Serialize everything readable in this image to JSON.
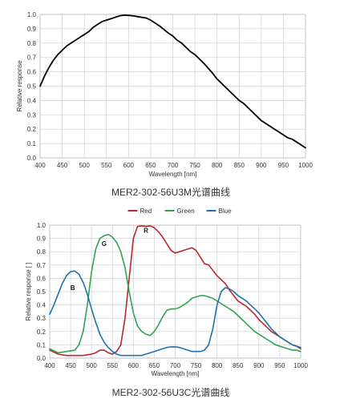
{
  "chart_data": [
    {
      "type": "line",
      "caption": "MER2-302-56U3M光谱曲线",
      "xlabel": "Wavelength  [nm]",
      "ylabel": "Relative response",
      "xlim": [
        400,
        1000
      ],
      "ylim": [
        0,
        1.0
      ],
      "xticks": [
        "400",
        "450",
        "500",
        "550",
        "600",
        "650",
        "700",
        "750",
        "800",
        "850",
        "900",
        "950",
        "1000"
      ],
      "yticks": [
        "0.0",
        "0.1",
        "0.2",
        "0.3",
        "0.4",
        "0.5",
        "0.6",
        "0.7",
        "0.8",
        "0.9",
        "1.0"
      ],
      "grid": true,
      "series": [
        {
          "color": "#000000",
          "x": [
            400,
            410,
            420,
            430,
            440,
            450,
            460,
            470,
            480,
            490,
            500,
            510,
            520,
            530,
            540,
            550,
            560,
            570,
            580,
            590,
            600,
            610,
            620,
            630,
            640,
            650,
            660,
            670,
            680,
            690,
            700,
            710,
            720,
            730,
            740,
            750,
            760,
            770,
            780,
            790,
            800,
            810,
            820,
            830,
            840,
            850,
            860,
            870,
            880,
            890,
            900,
            910,
            920,
            930,
            940,
            950,
            960,
            970,
            980,
            990,
            1000
          ],
          "y": [
            0.5,
            0.57,
            0.63,
            0.68,
            0.72,
            0.75,
            0.78,
            0.8,
            0.82,
            0.84,
            0.86,
            0.88,
            0.91,
            0.93,
            0.95,
            0.96,
            0.97,
            0.98,
            0.99,
            0.995,
            0.993,
            0.99,
            0.985,
            0.98,
            0.975,
            0.96,
            0.94,
            0.92,
            0.895,
            0.87,
            0.85,
            0.82,
            0.8,
            0.77,
            0.74,
            0.72,
            0.69,
            0.66,
            0.625,
            0.59,
            0.55,
            0.52,
            0.49,
            0.46,
            0.43,
            0.4,
            0.38,
            0.35,
            0.32,
            0.29,
            0.26,
            0.24,
            0.22,
            0.2,
            0.18,
            0.16,
            0.14,
            0.13,
            0.11,
            0.09,
            0.07
          ]
        }
      ]
    },
    {
      "type": "line",
      "caption": "MER2-302-56U3C光谱曲线",
      "xlabel": "Wavelength  [nm]",
      "ylabel": "Relative response [ ]",
      "xlim": [
        400,
        1000
      ],
      "ylim": [
        0,
        1.0
      ],
      "xticks": [
        "400",
        "450",
        "500",
        "550",
        "600",
        "650",
        "700",
        "750",
        "800",
        "850",
        "900",
        "950",
        "1000"
      ],
      "yticks": [
        "0.0",
        "0.1",
        "0.2",
        "0.3",
        "0.4",
        "0.5",
        "0.6",
        "0.7",
        "0.8",
        "0.9",
        "1.0"
      ],
      "grid": true,
      "legend_position": "top",
      "annotations": [
        {
          "text": "R",
          "x": 630,
          "y": 0.96
        },
        {
          "text": "G",
          "x": 530,
          "y": 0.86
        },
        {
          "text": "B",
          "x": 455,
          "y": 0.53
        }
      ],
      "series": [
        {
          "name": "Red",
          "color": "#b8282e",
          "x": [
            400,
            420,
            440,
            460,
            480,
            500,
            510,
            520,
            530,
            540,
            550,
            560,
            570,
            580,
            590,
            600,
            610,
            620,
            630,
            640,
            650,
            660,
            670,
            680,
            690,
            700,
            710,
            720,
            730,
            740,
            750,
            760,
            770,
            780,
            790,
            800,
            810,
            820,
            830,
            840,
            850,
            860,
            870,
            880,
            890,
            900,
            910,
            920,
            930,
            940,
            950,
            960,
            970,
            980,
            990,
            1000
          ],
          "y": [
            0.06,
            0.03,
            0.02,
            0.02,
            0.02,
            0.03,
            0.04,
            0.06,
            0.06,
            0.04,
            0.03,
            0.05,
            0.1,
            0.3,
            0.6,
            0.9,
            0.99,
            0.995,
            0.99,
            0.995,
            0.98,
            0.95,
            0.91,
            0.86,
            0.81,
            0.79,
            0.8,
            0.81,
            0.82,
            0.83,
            0.81,
            0.76,
            0.71,
            0.7,
            0.66,
            0.62,
            0.59,
            0.56,
            0.51,
            0.47,
            0.43,
            0.41,
            0.39,
            0.36,
            0.33,
            0.29,
            0.26,
            0.23,
            0.2,
            0.18,
            0.16,
            0.14,
            0.12,
            0.1,
            0.09,
            0.07
          ]
        },
        {
          "name": "Green",
          "color": "#2ea44f",
          "x": [
            400,
            420,
            440,
            460,
            470,
            480,
            490,
            500,
            510,
            520,
            530,
            540,
            550,
            560,
            570,
            580,
            590,
            600,
            610,
            620,
            630,
            640,
            650,
            660,
            670,
            680,
            690,
            700,
            710,
            720,
            730,
            740,
            750,
            760,
            770,
            780,
            790,
            800,
            810,
            820,
            830,
            840,
            850,
            860,
            870,
            880,
            890,
            900,
            910,
            920,
            930,
            940,
            950,
            960,
            970,
            980,
            990,
            1000
          ],
          "y": [
            0.07,
            0.04,
            0.05,
            0.06,
            0.1,
            0.2,
            0.4,
            0.65,
            0.82,
            0.9,
            0.92,
            0.93,
            0.91,
            0.87,
            0.8,
            0.68,
            0.5,
            0.34,
            0.24,
            0.2,
            0.18,
            0.17,
            0.2,
            0.25,
            0.31,
            0.36,
            0.37,
            0.37,
            0.38,
            0.4,
            0.42,
            0.45,
            0.46,
            0.47,
            0.47,
            0.46,
            0.45,
            0.43,
            0.41,
            0.39,
            0.37,
            0.35,
            0.32,
            0.29,
            0.26,
            0.23,
            0.2,
            0.18,
            0.16,
            0.14,
            0.12,
            0.1,
            0.09,
            0.08,
            0.07,
            0.06,
            0.06,
            0.05
          ]
        },
        {
          "name": "Blue",
          "color": "#1f6fb4",
          "x": [
            400,
            410,
            420,
            430,
            440,
            450,
            460,
            470,
            480,
            490,
            500,
            510,
            520,
            530,
            540,
            550,
            560,
            570,
            580,
            590,
            600,
            610,
            620,
            630,
            640,
            650,
            660,
            670,
            680,
            690,
            700,
            710,
            720,
            730,
            740,
            750,
            760,
            770,
            780,
            790,
            800,
            810,
            820,
            830,
            840,
            850,
            860,
            870,
            880,
            890,
            900,
            910,
            920,
            930,
            940,
            950,
            960,
            970,
            980,
            990,
            1000
          ],
          "y": [
            0.33,
            0.4,
            0.48,
            0.56,
            0.62,
            0.65,
            0.655,
            0.63,
            0.57,
            0.48,
            0.37,
            0.27,
            0.18,
            0.12,
            0.08,
            0.05,
            0.03,
            0.02,
            0.02,
            0.02,
            0.02,
            0.02,
            0.02,
            0.03,
            0.04,
            0.05,
            0.06,
            0.07,
            0.08,
            0.085,
            0.085,
            0.08,
            0.07,
            0.06,
            0.05,
            0.05,
            0.05,
            0.06,
            0.1,
            0.22,
            0.4,
            0.5,
            0.53,
            0.52,
            0.5,
            0.47,
            0.45,
            0.43,
            0.4,
            0.37,
            0.34,
            0.3,
            0.26,
            0.22,
            0.19,
            0.16,
            0.14,
            0.12,
            0.1,
            0.09,
            0.08
          ]
        }
      ]
    }
  ]
}
